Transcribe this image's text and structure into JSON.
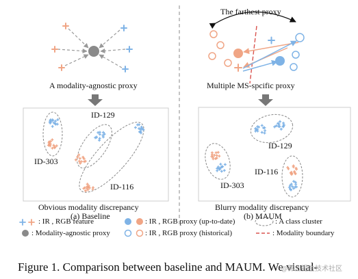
{
  "left": {
    "top_caption": "A modality-agnostic proxy",
    "id_labels": [
      "ID-129",
      "ID-303",
      "ID-116"
    ],
    "bottom_caption": "Obvious  modality discrepancy",
    "sub_label": "(a) Baseline"
  },
  "right": {
    "farthest_label": "The farthest proxy",
    "top_caption": "Multiple MS-spcific proxy",
    "id_labels": [
      "ID-129",
      "ID-303",
      "ID-116"
    ],
    "bottom_caption": "Blurry modality discrepancy",
    "sub_label": "(b) MAUM"
  },
  "legend": {
    "feature": ": IR , RGB feature",
    "agnostic": ": Modality-agnostic  proxy",
    "proxy_uptodate": ": IR , RGB proxy (up-to-date)",
    "proxy_historical": ": IR , RGB proxy (historical)",
    "cluster": ": A class cluster",
    "boundary": ": Modality boundary"
  },
  "figure_caption": "Figure 1.  Comparison between baseline and MAUM. We visual-",
  "watermark": "@稀土掘金技术社区",
  "colors": {
    "ir": "#7fb3e6",
    "rgb": "#f0a585",
    "gray": "#8a8a8a",
    "boundary": "#d9534f",
    "dash": "#999999"
  }
}
